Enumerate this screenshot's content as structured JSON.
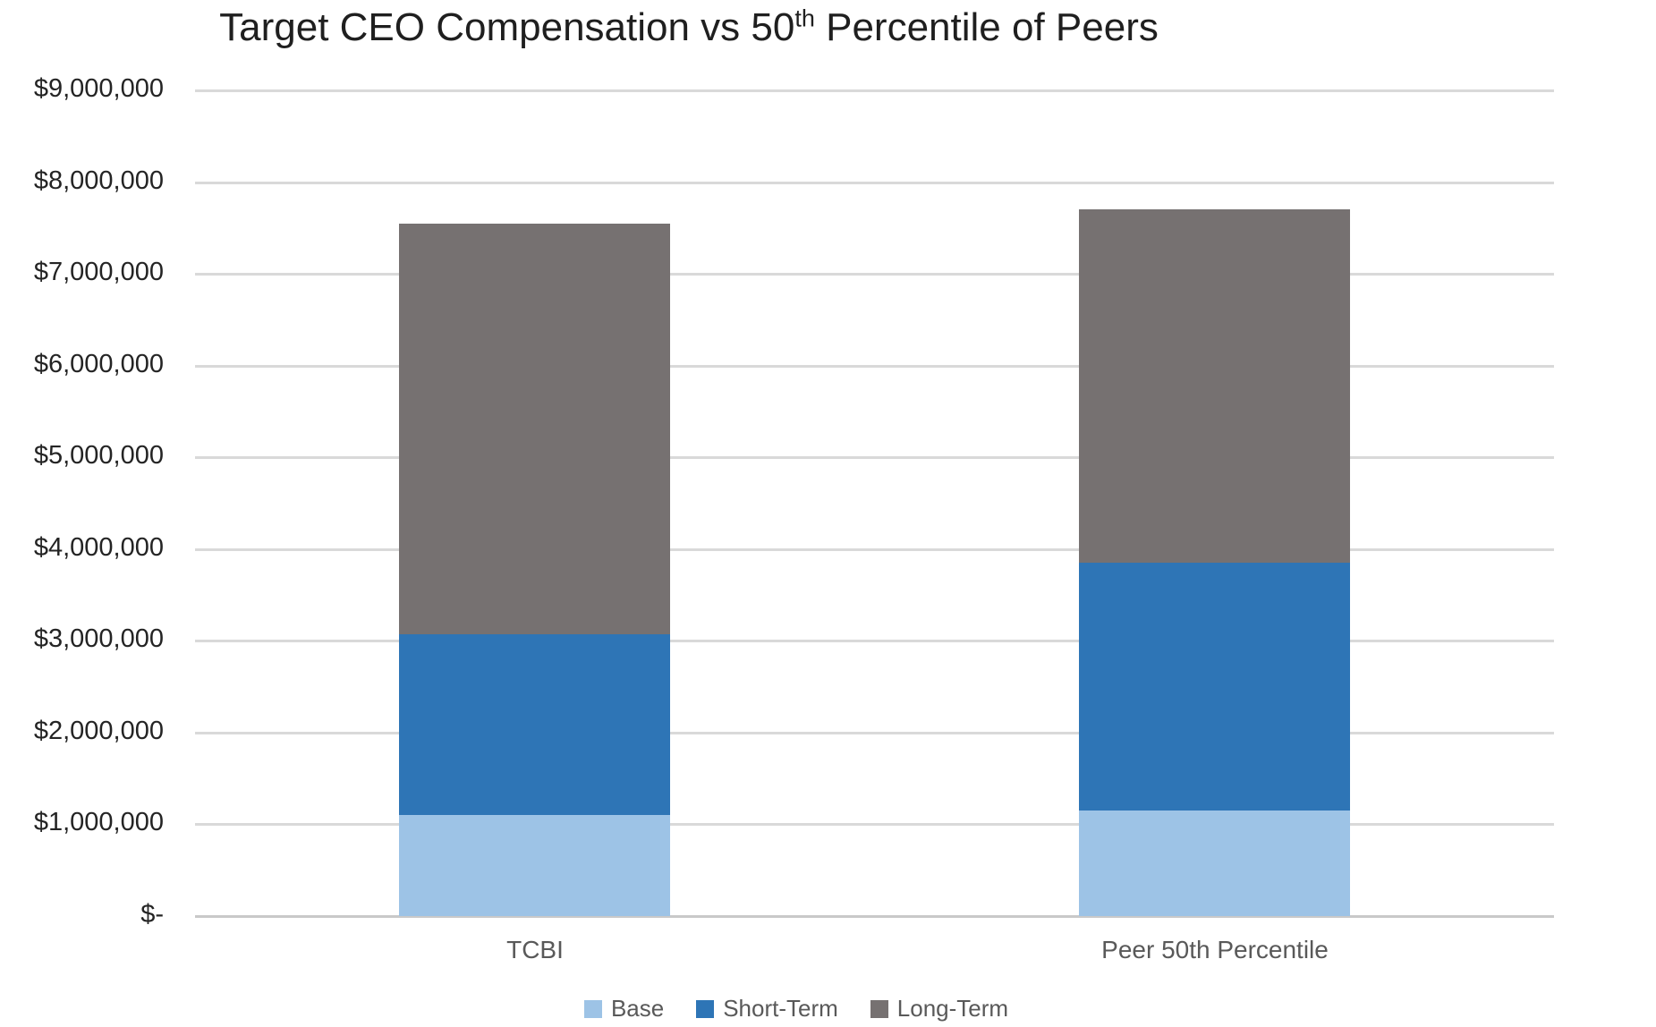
{
  "title": {
    "text_before_sup": "Target CEO Compensation vs 50",
    "sup": "th",
    "text_after_sup": " Percentile of Peers"
  },
  "chart_data": {
    "type": "bar",
    "stacked": true,
    "title": "Target CEO Compensation vs 50th Percentile of Peers",
    "categories": [
      "TCBI",
      "Peer 50th Percentile"
    ],
    "series": [
      {
        "name": "Base",
        "color": "#9DC3E6",
        "values": [
          1100000,
          1150000
        ]
      },
      {
        "name": "Short-Term",
        "color": "#2E75B6",
        "values": [
          1975000,
          2700000
        ]
      },
      {
        "name": "Long-Term",
        "color": "#767171",
        "values": [
          4475000,
          3850000
        ]
      }
    ],
    "totals": [
      7550000,
      7700000
    ],
    "xlabel": "",
    "ylabel": "",
    "ylim": [
      0,
      9000000
    ],
    "ytick_step": 1000000,
    "ytick_labels": [
      "$-",
      "$1,000,000",
      "$2,000,000",
      "$3,000,000",
      "$4,000,000",
      "$5,000,000",
      "$6,000,000",
      "$7,000,000",
      "$8,000,000",
      "$9,000,000"
    ],
    "grid": true,
    "legend_position": "bottom",
    "legend": [
      "Base",
      "Short-Term",
      "Long-Term"
    ]
  }
}
